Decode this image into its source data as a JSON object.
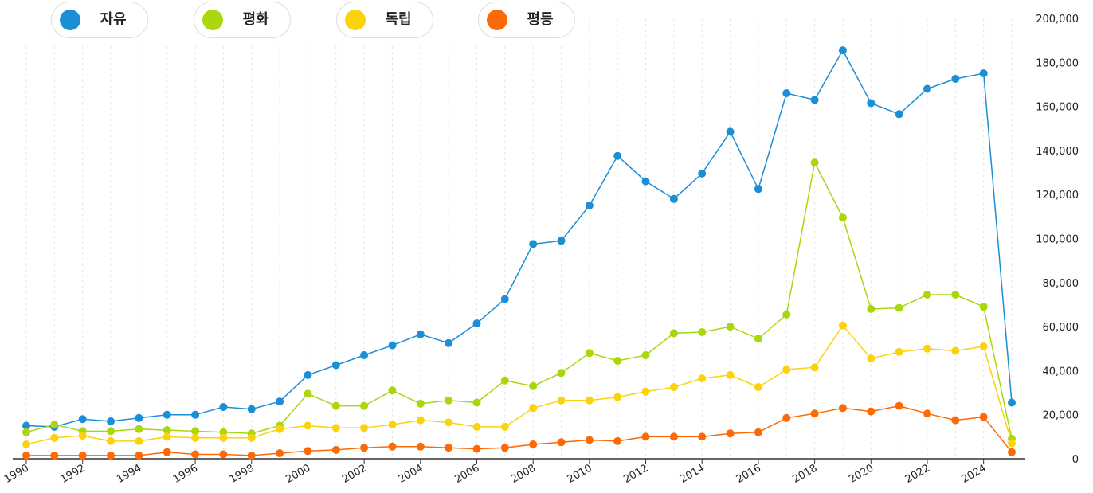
{
  "legend": [
    {
      "label": "자유",
      "color": "#1a8fd6"
    },
    {
      "label": "평화",
      "color": "#a9d70b"
    },
    {
      "label": "독립",
      "color": "#fcd20b"
    },
    {
      "label": "평등",
      "color": "#fc6a08"
    }
  ],
  "chart_data": {
    "type": "line",
    "x": [
      1990,
      1991,
      1992,
      1993,
      1994,
      1995,
      1996,
      1997,
      1998,
      1999,
      2000,
      2001,
      2002,
      2003,
      2004,
      2005,
      2006,
      2007,
      2008,
      2009,
      2010,
      2011,
      2012,
      2013,
      2014,
      2015,
      2016,
      2017,
      2018,
      2019,
      2020,
      2021,
      2022,
      2023,
      2024,
      2025
    ],
    "x_tick_labels": [
      "1990",
      "1992",
      "1994",
      "1996",
      "1998",
      "2000",
      "2002",
      "2004",
      "2006",
      "2008",
      "2010",
      "2012",
      "2014",
      "2016",
      "2018",
      "2020",
      "2022",
      "2024"
    ],
    "y_tick_labels": [
      "0",
      "20,000",
      "40,000",
      "60,000",
      "80,000",
      "100,000",
      "120,000",
      "140,000",
      "160,000",
      "180,000",
      "200,000"
    ],
    "ylim": [
      0,
      200000
    ],
    "y_axis_side": "right",
    "legend_position": "top-left",
    "grid": "vertical-dashed",
    "series": [
      {
        "name": "자유",
        "color": "#1a8fd6",
        "values": [
          15000,
          14500,
          18000,
          17000,
          18500,
          20000,
          20000,
          23500,
          22500,
          26000,
          38000,
          42500,
          47000,
          51500,
          56500,
          52500,
          61500,
          72500,
          97500,
          99000,
          115000,
          137500,
          126000,
          118000,
          129500,
          148500,
          122500,
          166000,
          163000,
          185500,
          161500,
          156500,
          168000,
          172500,
          175000,
          25500
        ]
      },
      {
        "name": "평화",
        "color": "#a9d70b",
        "values": [
          12000,
          15500,
          12500,
          12500,
          13500,
          13000,
          12500,
          12000,
          11500,
          15000,
          29500,
          24000,
          24000,
          31000,
          25000,
          26500,
          25500,
          35500,
          33000,
          39000,
          48000,
          44500,
          47000,
          57000,
          57500,
          60000,
          54500,
          65500,
          134500,
          109500,
          68000,
          68500,
          74500,
          74500,
          69000,
          9000
        ]
      },
      {
        "name": "독립",
        "color": "#fcd20b",
        "values": [
          6500,
          9500,
          10500,
          8000,
          8000,
          10000,
          9500,
          9500,
          9500,
          13500,
          15000,
          14000,
          14000,
          15500,
          17500,
          16500,
          14500,
          14500,
          23000,
          26500,
          26500,
          28000,
          30500,
          32500,
          36500,
          38000,
          32500,
          40500,
          41500,
          60500,
          45500,
          48500,
          50000,
          49000,
          51000,
          7000
        ]
      },
      {
        "name": "평등",
        "color": "#fc6a08",
        "values": [
          1500,
          1500,
          1500,
          1500,
          1500,
          3000,
          2000,
          2000,
          1500,
          2500,
          3500,
          4000,
          5000,
          5500,
          5500,
          5000,
          4500,
          5000,
          6500,
          7500,
          8500,
          8000,
          10000,
          10000,
          10000,
          11500,
          12000,
          18500,
          20500,
          23000,
          21500,
          24000,
          20500,
          17500,
          19000,
          3000
        ]
      }
    ]
  }
}
